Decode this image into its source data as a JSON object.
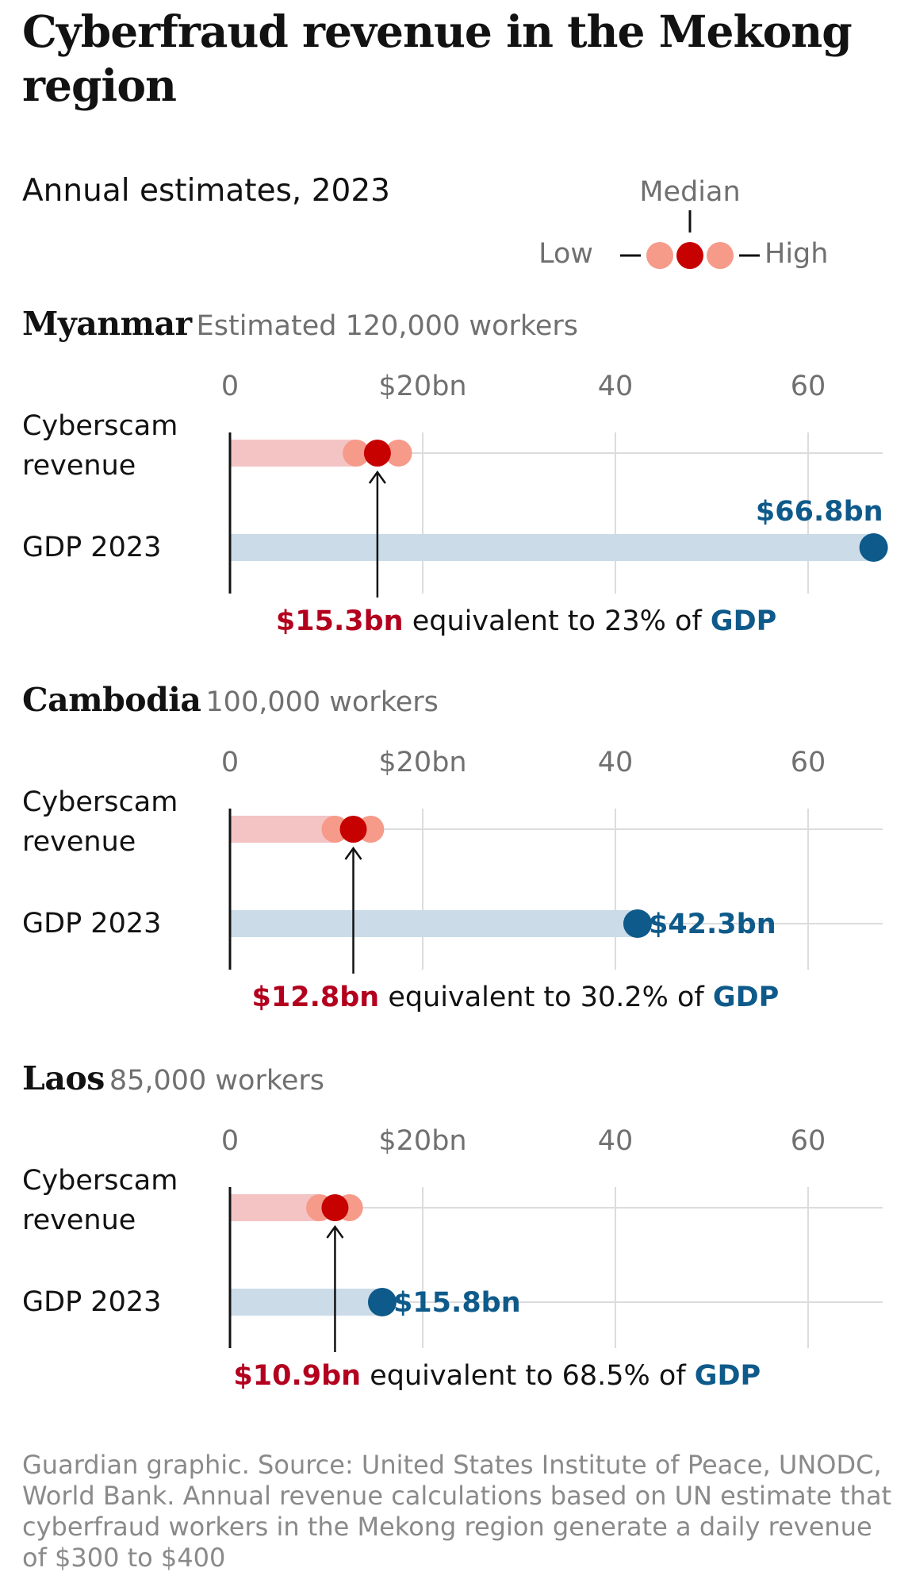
{
  "title": "Cyberfraud revenue in the Mekong region",
  "subtitle": "Annual estimates, 2023",
  "legend": {
    "median": "Median",
    "low": "Low",
    "high": "High"
  },
  "colors": {
    "low_high_dot": "#f69a8a",
    "median_dot": "#c70000",
    "revenue_band": "#f4c4c4",
    "gdp_dot": "#0e5a8a",
    "gdp_band": "#cbdbe8",
    "red_text": "#b3001e",
    "blue_text": "#0e5a8a"
  },
  "row_labels": {
    "revenue": "Cyberscam revenue",
    "gdp": "GDP 2023"
  },
  "tick_labels": [
    "0",
    "$20bn",
    "40",
    "60"
  ],
  "panels": [
    {
      "country": "Myanmar",
      "workers": "Estimated 120,000 workers",
      "gdp_label": "$66.8bn",
      "annotation": {
        "value": "$15.3bn",
        "middle": " equivalent to 23% of ",
        "gdp": "GDP"
      }
    },
    {
      "country": "Cambodia",
      "workers": "100,000 workers",
      "gdp_label": "$42.3bn",
      "annotation": {
        "value": "$12.8bn",
        "middle": " equivalent to 30.2% of ",
        "gdp": "GDP"
      }
    },
    {
      "country": "Laos",
      "workers": "85,000 workers",
      "gdp_label": "$15.8bn",
      "annotation": {
        "value": "$10.9bn",
        "middle": " equivalent to 68.5% of ",
        "gdp": "GDP"
      }
    }
  ],
  "chart_data": [
    {
      "type": "dot-range",
      "title": "Myanmar",
      "xlim": [
        0,
        66.8
      ],
      "xticks": [
        0,
        20,
        40,
        60
      ],
      "revenue": {
        "low": 13.1,
        "median": 15.3,
        "high": 17.5
      },
      "gdp": 66.8
    },
    {
      "type": "dot-range",
      "title": "Cambodia",
      "xlim": [
        0,
        66.8
      ],
      "xticks": [
        0,
        20,
        40,
        60
      ],
      "revenue": {
        "low": 10.9,
        "median": 12.8,
        "high": 14.6
      },
      "gdp": 42.3
    },
    {
      "type": "dot-range",
      "title": "Laos",
      "xlim": [
        0,
        66.8
      ],
      "xticks": [
        0,
        20,
        40,
        60
      ],
      "revenue": {
        "low": 9.3,
        "median": 10.9,
        "high": 12.4
      },
      "gdp": 15.8
    }
  ],
  "source": "Guardian graphic. Source: United States Institute of Peace, UNODC, World Bank. Annual revenue calculations based on UN estimate that cyberfraud workers in the Mekong region generate a daily revenue of $300 to $400"
}
